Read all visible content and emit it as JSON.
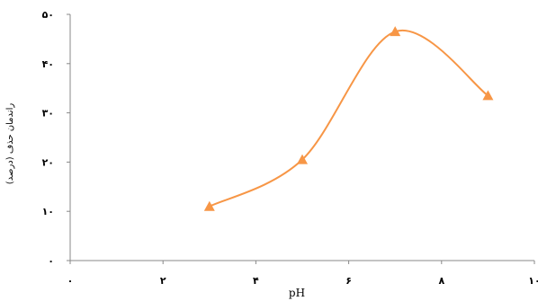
{
  "chart_data": {
    "type": "line",
    "title": "",
    "xlabel": "pH",
    "ylabel": "راندمان حذف (درصد)",
    "xlim": [
      0,
      10
    ],
    "ylim": [
      0,
      50
    ],
    "x_ticks": [
      0,
      2,
      4,
      6,
      8,
      10
    ],
    "y_ticks": [
      0,
      10,
      20,
      30,
      40,
      50
    ],
    "x_tick_labels": [
      "۰",
      "۲",
      "۴",
      "۶",
      "۸",
      "۱۰"
    ],
    "y_tick_labels": [
      "۰",
      "۱۰",
      "۲۰",
      "۳۰",
      "۴۰",
      "۵۰"
    ],
    "grid": false,
    "smooth": true,
    "marker": "triangle",
    "color": "#F79646",
    "series": [
      {
        "x": [
          3,
          5,
          7,
          9
        ],
        "y": [
          11,
          20.5,
          46.5,
          33.5
        ]
      }
    ]
  }
}
